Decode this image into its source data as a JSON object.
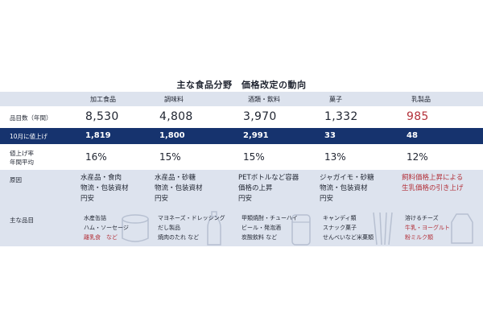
{
  "title": "主な食品分野　価格改定の動向",
  "categories": [
    "加工食品",
    "調味料",
    "酒類・飲料",
    "菓子",
    "乳製品"
  ],
  "rows": {
    "count_label": "品目数（年間）",
    "counts": [
      "8,530",
      "4,808",
      "3,970",
      "1,332",
      "985"
    ],
    "october_label": "10月に値上げ",
    "october": [
      "1,819",
      "1,800",
      "2,991",
      "33",
      "48"
    ],
    "rate_label_1": "値上げ率",
    "rate_label_2": "年間平均",
    "rates": [
      "16%",
      "15%",
      "15%",
      "13%",
      "12%"
    ],
    "cause_label": "原因",
    "causes": [
      [
        "水産品・食肉",
        "物流・包装資材",
        "円安"
      ],
      [
        "水産品・砂糖",
        "物流・包装資材",
        "円安"
      ],
      [
        "PETボトルなど容器",
        "価格の上昇",
        "円安"
      ],
      [
        "ジャガイモ・砂糖",
        "物流・包装資材",
        "円安"
      ],
      [
        "飼料価格上昇による",
        "生乳価格の引き上げ"
      ]
    ],
    "items_label": "主な品目",
    "items": [
      [
        "水産缶詰",
        "ハム・ソーセージ",
        "離乳食　など"
      ],
      [
        "マヨネーズ・ドレッシング",
        "だし製品",
        "焼肉のたれ など"
      ],
      [
        "甲類焼酎・チューハイ",
        "ビール・発泡酒",
        "炭酸飲料 など"
      ],
      [
        "キャンディ類",
        "スナック菓子",
        "せんべいなど米菓類"
      ],
      [
        "溶けるチーズ",
        "牛乳・ヨーグルト",
        "粉ミルク類"
      ]
    ]
  },
  "colors": {
    "header_band": "#dde3ee",
    "october_band": "#16336e",
    "accent_red": "#b3313a"
  }
}
